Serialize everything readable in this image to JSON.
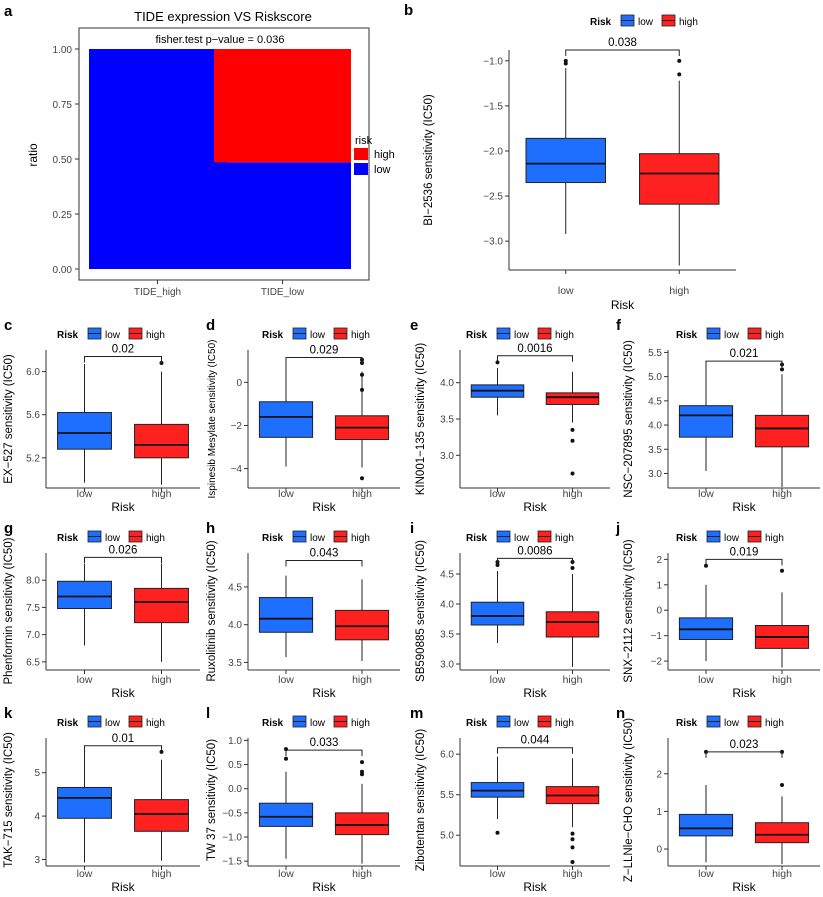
{
  "colors": {
    "low": "#1f6fff",
    "high": "#ff2020",
    "bar_low": "#0000ff",
    "bar_high": "#ff0000",
    "axis": "#333333",
    "panel_border": "#333333"
  },
  "legend": {
    "title": "Risk",
    "low": "low",
    "high": "high"
  },
  "panel_a": {
    "letter": "a",
    "title": "TIDE expression VS Riskscore",
    "pvalue_text": "fisher.test p−value = 0.036",
    "ylabel": "ratio",
    "yticks": [
      "0.00",
      "0.25",
      "0.50",
      "0.75",
      "1.00"
    ],
    "legend_title": "risk",
    "legend_high": "high",
    "legend_low": "low"
  },
  "chart_data": [
    {
      "id": "a",
      "type": "bar",
      "stacked": true,
      "title": "TIDE expression VS Riskscore",
      "xlabel": "",
      "ylabel": "ratio",
      "ylim": [
        0,
        1
      ],
      "categories": [
        "TIDE_high",
        "TIDE_low"
      ],
      "series": [
        {
          "name": "low",
          "values": [
            1.0,
            0.485
          ]
        },
        {
          "name": "high",
          "values": [
            0.0,
            0.515
          ]
        }
      ],
      "annotation": "fisher.test p−value = 0.036"
    },
    {
      "id": "b",
      "type": "box",
      "xlabel": "Risk",
      "ylabel": "BI−2536 sensitivity (IC50)",
      "ylim": [
        -3.32,
        -0.88
      ],
      "yticks": [
        -3.0,
        -2.5,
        -2.0,
        -1.5,
        -1.0
      ],
      "ytick_labels": [
        "−3.0",
        "−2.5",
        "−2.0",
        "−1.5",
        "−1.0"
      ],
      "pvalue": "0.038",
      "bracket_y": -0.88,
      "groups": [
        {
          "name": "low",
          "whisker_low": -2.92,
          "q1": -2.35,
          "median": -2.14,
          "q3": -1.86,
          "whisker_high": -1.08,
          "outliers": [
            -1.0,
            -1.03
          ]
        },
        {
          "name": "high",
          "whisker_low": -3.27,
          "q1": -2.59,
          "median": -2.25,
          "q3": -2.03,
          "whisker_high": -1.22,
          "outliers": [
            -1.0,
            -1.15
          ]
        }
      ]
    },
    {
      "id": "c",
      "type": "box",
      "xlabel": "Risk",
      "ylabel": "EX−527 sensitivity (IC50)",
      "ylim": [
        4.92,
        6.2
      ],
      "yticks": [
        5.2,
        5.6,
        6.0
      ],
      "ytick_labels": [
        "5.2",
        "5.6",
        "6.0"
      ],
      "pvalue": "0.02",
      "bracket_y": 6.14,
      "groups": [
        {
          "name": "low",
          "whisker_low": 4.97,
          "q1": 5.28,
          "median": 5.43,
          "q3": 5.62,
          "whisker_high": 6.07,
          "outliers": []
        },
        {
          "name": "high",
          "whisker_low": 4.95,
          "q1": 5.2,
          "median": 5.32,
          "q3": 5.51,
          "whisker_high": 6.0,
          "outliers": [
            6.08
          ]
        }
      ]
    },
    {
      "id": "d",
      "type": "box",
      "xlabel": "Risk",
      "ylabel": "Ispinesib Mesylate sensitivity (IC50)",
      "ylim": [
        -4.9,
        1.5
      ],
      "yticks": [
        -4,
        -2,
        0
      ],
      "ytick_labels": [
        "−4",
        "−2",
        "0"
      ],
      "pvalue": "0.029",
      "bracket_y": 1.15,
      "groups": [
        {
          "name": "low",
          "whisker_low": -3.9,
          "q1": -2.55,
          "median": -1.6,
          "q3": -0.9,
          "whisker_high": 1.1,
          "outliers": []
        },
        {
          "name": "high",
          "whisker_low": -3.95,
          "q1": -2.65,
          "median": -2.1,
          "q3": -1.55,
          "whisker_high": 0.5,
          "outliers": [
            0.9,
            0.35,
            -0.35,
            1.05,
            -4.45
          ]
        }
      ]
    },
    {
      "id": "e",
      "type": "box",
      "xlabel": "Risk",
      "ylabel": "KIN001−135 sensitivity (IC50)",
      "ylim": [
        2.55,
        4.45
      ],
      "yticks": [
        3.0,
        3.5,
        4.0
      ],
      "ytick_labels": [
        "3.0",
        "3.5",
        "4.0"
      ],
      "pvalue": "0.0016",
      "bracket_y": 4.37,
      "groups": [
        {
          "name": "low",
          "whisker_low": 3.55,
          "q1": 3.8,
          "median": 3.89,
          "q3": 3.97,
          "whisker_high": 4.2,
          "outliers": [
            4.28
          ]
        },
        {
          "name": "high",
          "whisker_low": 3.45,
          "q1": 3.7,
          "median": 3.8,
          "q3": 3.86,
          "whisker_high": 4.15,
          "outliers": [
            3.35,
            3.2,
            2.75
          ]
        }
      ]
    },
    {
      "id": "f",
      "type": "box",
      "xlabel": "Risk",
      "ylabel": "NSC−207895 sensitivity (IC50)",
      "ylim": [
        2.7,
        5.55
      ],
      "yticks": [
        3.0,
        3.5,
        4.0,
        4.5,
        5.0,
        5.5
      ],
      "ytick_labels": [
        "3.0",
        "3.5",
        "4.0",
        "4.5",
        "5.0",
        "5.5"
      ],
      "pvalue": "0.021",
      "bracket_y": 5.32,
      "groups": [
        {
          "name": "low",
          "whisker_low": 3.05,
          "q1": 3.75,
          "median": 4.2,
          "q3": 4.4,
          "whisker_high": 5.2,
          "outliers": []
        },
        {
          "name": "high",
          "whisker_low": 2.72,
          "q1": 3.55,
          "median": 3.93,
          "q3": 4.2,
          "whisker_high": 5.05,
          "outliers": [
            5.15,
            5.25
          ]
        }
      ]
    },
    {
      "id": "g",
      "type": "box",
      "xlabel": "Risk",
      "ylabel": "Phenformin sensitivity (IC50)",
      "ylim": [
        6.35,
        8.5
      ],
      "yticks": [
        6.5,
        7.0,
        7.5,
        8.0
      ],
      "ytick_labels": [
        "6.5",
        "7.0",
        "7.5",
        "8.0"
      ],
      "pvalue": "0.026",
      "bracket_y": 8.42,
      "groups": [
        {
          "name": "low",
          "whisker_low": 6.8,
          "q1": 7.48,
          "median": 7.7,
          "q3": 7.98,
          "whisker_high": 8.3,
          "outliers": []
        },
        {
          "name": "high",
          "whisker_low": 6.5,
          "q1": 7.22,
          "median": 7.6,
          "q3": 7.85,
          "whisker_high": 8.3,
          "outliers": []
        }
      ]
    },
    {
      "id": "h",
      "type": "box",
      "xlabel": "Risk",
      "ylabel": "Ruxolitinib sensitivity (IC50)",
      "ylim": [
        3.4,
        4.95
      ],
      "yticks": [
        3.5,
        4.0,
        4.5
      ],
      "ytick_labels": [
        "3.5",
        "4.0",
        "4.5"
      ],
      "pvalue": "0.043",
      "bracket_y": 4.85,
      "groups": [
        {
          "name": "low",
          "whisker_low": 3.57,
          "q1": 3.9,
          "median": 4.08,
          "q3": 4.36,
          "whisker_high": 4.65,
          "outliers": []
        },
        {
          "name": "high",
          "whisker_low": 3.52,
          "q1": 3.8,
          "median": 3.98,
          "q3": 4.19,
          "whisker_high": 4.6,
          "outliers": []
        }
      ]
    },
    {
      "id": "i",
      "type": "box",
      "xlabel": "Risk",
      "ylabel": "SB590885 sensitivity (IC50)",
      "ylim": [
        2.9,
        4.85
      ],
      "yticks": [
        3.0,
        3.5,
        4.0,
        4.5
      ],
      "ytick_labels": [
        "3.0",
        "3.5",
        "4.0",
        "4.5"
      ],
      "pvalue": "0.0086",
      "bracket_y": 4.76,
      "groups": [
        {
          "name": "low",
          "whisker_low": 3.35,
          "q1": 3.65,
          "median": 3.8,
          "q3": 4.03,
          "whisker_high": 4.55,
          "outliers": [
            4.65,
            4.7
          ]
        },
        {
          "name": "high",
          "whisker_low": 2.95,
          "q1": 3.45,
          "median": 3.7,
          "q3": 3.87,
          "whisker_high": 4.5,
          "outliers": [
            4.6,
            4.7
          ]
        }
      ]
    },
    {
      "id": "j",
      "type": "box",
      "xlabel": "Risk",
      "ylabel": "SNX−2112 sensitivity (IC50)",
      "ylim": [
        -2.35,
        2.25
      ],
      "yticks": [
        -2,
        -1,
        0,
        1,
        2
      ],
      "ytick_labels": [
        "−2",
        "−1",
        "0",
        "1",
        "2"
      ],
      "pvalue": "0.019",
      "bracket_y": 2.0,
      "groups": [
        {
          "name": "low",
          "whisker_low": -2.0,
          "q1": -1.15,
          "median": -0.75,
          "q3": -0.3,
          "whisker_high": 1.0,
          "outliers": [
            1.75
          ]
        },
        {
          "name": "high",
          "whisker_low": -2.25,
          "q1": -1.5,
          "median": -1.05,
          "q3": -0.6,
          "whisker_high": 0.7,
          "outliers": [
            1.55
          ]
        }
      ]
    },
    {
      "id": "k",
      "type": "box",
      "xlabel": "Risk",
      "ylabel": "TAK−715 sensitivity (IC50)",
      "ylim": [
        2.85,
        5.8
      ],
      "yticks": [
        3,
        4,
        5
      ],
      "ytick_labels": [
        "3",
        "4",
        "5"
      ],
      "pvalue": "0.01",
      "bracket_y": 5.62,
      "groups": [
        {
          "name": "low",
          "whisker_low": 2.93,
          "q1": 3.95,
          "median": 4.42,
          "q3": 4.66,
          "whisker_high": 5.55,
          "outliers": []
        },
        {
          "name": "high",
          "whisker_low": 2.97,
          "q1": 3.65,
          "median": 4.05,
          "q3": 4.38,
          "whisker_high": 5.3,
          "outliers": [
            5.48
          ]
        }
      ]
    },
    {
      "id": "l",
      "type": "box",
      "xlabel": "Risk",
      "ylabel": "TW 37 sensitivity (IC50)",
      "ylim": [
        -1.6,
        1.05
      ],
      "yticks": [
        -1.5,
        -1.0,
        -0.5,
        0.0,
        0.5,
        1.0
      ],
      "ytick_labels": [
        "−1.5",
        "−1.0",
        "−0.5",
        "0.0",
        "0.5",
        "1.0"
      ],
      "pvalue": "0.033",
      "bracket_y": 0.8,
      "groups": [
        {
          "name": "low",
          "whisker_low": -1.45,
          "q1": -0.78,
          "median": -0.58,
          "q3": -0.3,
          "whisker_high": 0.35,
          "outliers": [
            0.62,
            0.82
          ]
        },
        {
          "name": "high",
          "whisker_low": -1.55,
          "q1": -0.95,
          "median": -0.75,
          "q3": -0.5,
          "whisker_high": 0.1,
          "outliers": [
            0.3,
            0.35,
            0.55
          ]
        }
      ]
    },
    {
      "id": "m",
      "type": "box",
      "xlabel": "Risk",
      "ylabel": "Zibotentan sensitivity (IC50)",
      "ylim": [
        4.62,
        6.2
      ],
      "yticks": [
        5.0,
        5.5,
        6.0
      ],
      "ytick_labels": [
        "5.0",
        "5.5",
        "6.0"
      ],
      "pvalue": "0.044",
      "bracket_y": 6.08,
      "groups": [
        {
          "name": "low",
          "whisker_low": 5.2,
          "q1": 5.47,
          "median": 5.55,
          "q3": 5.65,
          "whisker_high": 5.97,
          "outliers": [
            5.03
          ]
        },
        {
          "name": "high",
          "whisker_low": 5.1,
          "q1": 5.39,
          "median": 5.49,
          "q3": 5.6,
          "whisker_high": 5.95,
          "outliers": [
            5.02,
            4.95,
            4.85,
            4.67
          ]
        }
      ]
    },
    {
      "id": "n",
      "type": "box",
      "xlabel": "Risk",
      "ylabel": "Z−LLNle−CHO sensitivity (IC50)",
      "ylim": [
        -0.45,
        2.95
      ],
      "yticks": [
        0,
        1,
        2
      ],
      "ytick_labels": [
        "0",
        "1",
        "2"
      ],
      "pvalue": "0.023",
      "bracket_y": 2.58,
      "groups": [
        {
          "name": "low",
          "whisker_low": -0.35,
          "q1": 0.35,
          "median": 0.55,
          "q3": 0.92,
          "whisker_high": 1.7,
          "outliers": [
            2.58
          ]
        },
        {
          "name": "high",
          "whisker_low": -0.4,
          "q1": 0.17,
          "median": 0.38,
          "q3": 0.7,
          "whisker_high": 1.4,
          "outliers": [
            1.7,
            2.58
          ]
        }
      ]
    }
  ]
}
